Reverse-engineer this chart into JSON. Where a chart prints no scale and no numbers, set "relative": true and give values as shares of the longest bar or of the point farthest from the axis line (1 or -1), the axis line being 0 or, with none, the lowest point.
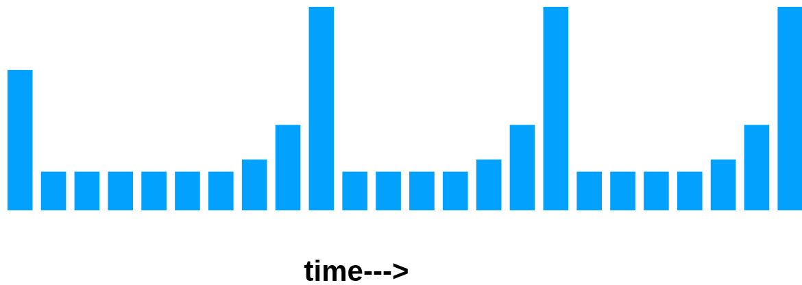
{
  "chart_data": {
    "type": "bar",
    "relative": true,
    "xlabel": "time--->",
    "color": "#03a1fe",
    "categories": [
      null,
      null,
      null,
      null,
      null,
      null,
      null,
      null,
      null,
      null,
      null,
      null,
      null,
      null,
      null,
      null,
      null,
      null,
      null,
      null,
      null,
      null,
      null,
      null
    ],
    "values": [
      0.69,
      0.19,
      0.19,
      0.19,
      0.19,
      0.19,
      0.19,
      0.25,
      0.42,
      1,
      0.19,
      0.19,
      0.19,
      0.19,
      0.25,
      0.42,
      1,
      0.19,
      0.19,
      0.19,
      0.19,
      0.25,
      0.42,
      1
    ]
  }
}
